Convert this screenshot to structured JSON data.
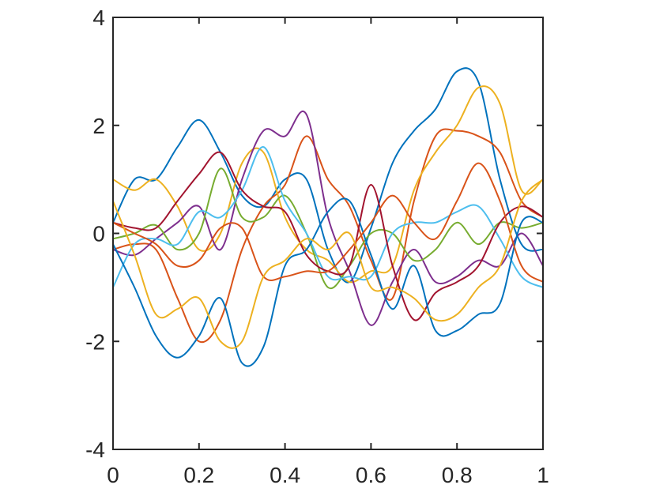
{
  "chart_data": {
    "type": "line",
    "x": [
      0,
      0.05,
      0.1,
      0.15,
      0.2,
      0.25,
      0.3,
      0.35,
      0.4,
      0.45,
      0.5,
      0.55,
      0.6,
      0.65,
      0.7,
      0.75,
      0.8,
      0.85,
      0.9,
      0.95,
      1
    ],
    "series": [
      {
        "color": "#0072BD",
        "values": [
          0.2,
          1.0,
          1.0,
          1.6,
          2.1,
          1.5,
          0.7,
          0.5,
          1.0,
          1.0,
          -0.3,
          -0.9,
          0.1,
          1.3,
          1.9,
          2.3,
          3.0,
          2.8,
          1.0,
          -0.2,
          -0.3
        ]
      },
      {
        "color": "#D95319",
        "values": [
          -0.3,
          -0.2,
          -0.3,
          -1.2,
          -2.0,
          -1.6,
          -0.3,
          0.5,
          0.9,
          1.8,
          1.0,
          0.5,
          -0.5,
          -1.2,
          0.6,
          1.8,
          1.9,
          1.8,
          1.5,
          0.6,
          0.3
        ]
      },
      {
        "color": "#EDB120",
        "values": [
          1.0,
          0.8,
          1.0,
          0.5,
          -0.3,
          0.0,
          1.3,
          1.5,
          0.3,
          -0.3,
          -0.5,
          -0.9,
          -0.7,
          -0.6,
          0.8,
          1.5,
          2.0,
          2.7,
          2.4,
          0.8,
          1.0
        ]
      },
      {
        "color": "#7E2F8E",
        "values": [
          -0.3,
          -0.4,
          -0.1,
          0.2,
          0.5,
          -0.3,
          1.0,
          1.9,
          1.8,
          2.2,
          0.3,
          -0.7,
          -1.7,
          -0.9,
          -0.3,
          -0.9,
          -0.8,
          -0.5,
          -0.6,
          0,
          -0.6
        ]
      },
      {
        "color": "#77AC30",
        "values": [
          -0.1,
          0.0,
          0.15,
          -0.3,
          0.0,
          1.2,
          0.3,
          0.3,
          0.7,
          0.0,
          -1.0,
          -0.6,
          0.0,
          0.0,
          -0.5,
          -0.3,
          0.2,
          -0.2,
          0.2,
          0.1,
          0.2
        ]
      },
      {
        "color": "#4DBEEE",
        "values": [
          -1.0,
          -0.2,
          -0.1,
          -0.2,
          0.4,
          0.3,
          0.8,
          1.6,
          0.6,
          0.0,
          -0.8,
          -0.8,
          -0.8,
          0.0,
          0.2,
          0.2,
          0.4,
          0.5,
          -0.1,
          -0.8,
          -1.0
        ]
      },
      {
        "color": "#A2142F",
        "values": [
          0.2,
          0.1,
          0.1,
          0.6,
          1.1,
          1.5,
          0.8,
          0.5,
          0.4,
          -0.4,
          -0.7,
          -0.6,
          0.9,
          -0.6,
          -1.6,
          -1.1,
          -0.9,
          -0.6,
          0.2,
          0.5,
          0.3
        ]
      },
      {
        "color": "#0072BD",
        "values": [
          -0.2,
          -1.0,
          -1.9,
          -2.3,
          -1.9,
          -1.2,
          -2.4,
          -2.1,
          -0.6,
          -0.3,
          0.4,
          0.6,
          -0.4,
          -1.4,
          -0.6,
          -1.8,
          -1.8,
          -1.5,
          -1.3,
          0.2,
          0.2
        ]
      },
      {
        "color": "#D95319",
        "values": [
          0.2,
          0,
          -0.2,
          -0.6,
          -0.5,
          0.1,
          0.1,
          -0.8,
          -0.8,
          -0.7,
          -0.7,
          -0.3,
          0.2,
          0.7,
          0.2,
          -0.1,
          0.6,
          1.3,
          0.6,
          -0.6,
          -0.9
        ]
      },
      {
        "color": "#EDB120",
        "values": [
          0.6,
          -0.4,
          -1.5,
          -1.4,
          -1.2,
          -2.0,
          -2.0,
          -0.8,
          -0.5,
          -0.1,
          -0.3,
          0.0,
          -1.0,
          -1.0,
          -1.2,
          -1.6,
          -1.5,
          -1.0,
          -0.6,
          0.6,
          1.0
        ]
      }
    ],
    "xlim": [
      0,
      1
    ],
    "xticks": [
      0,
      0.2,
      0.4,
      0.6,
      0.8,
      1
    ],
    "ylim": [
      -4,
      4
    ],
    "yticks": [
      -4,
      -2,
      0,
      2,
      4
    ]
  }
}
